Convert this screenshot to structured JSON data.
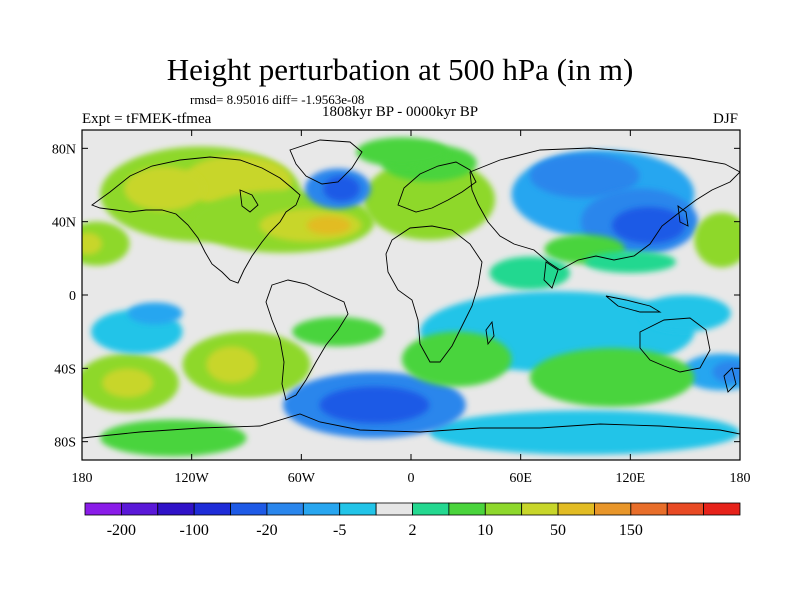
{
  "title": "Height perturbation at 500 hPa (in m)",
  "stats": "rmsd= 8.95016 diff= -1.9563e-08",
  "experiment": "Expt = tFMEK-tfmea",
  "period": "1808kyr BP - 0000kyr BP",
  "season": "DJF",
  "map": {
    "projection": "cylindrical equidistant",
    "lon_range": [
      -180,
      180
    ],
    "lat_range": [
      -90,
      90
    ],
    "x_ticks": [
      {
        "lon": -180,
        "label": "180"
      },
      {
        "lon": -120,
        "label": "120W"
      },
      {
        "lon": -60,
        "label": "60W"
      },
      {
        "lon": 0,
        "label": "0"
      },
      {
        "lon": 60,
        "label": "60E"
      },
      {
        "lon": 120,
        "label": "120E"
      },
      {
        "lon": 180,
        "label": "180"
      }
    ],
    "y_ticks": [
      {
        "lat": 80,
        "label": "80N"
      },
      {
        "lat": 40,
        "label": "40N"
      },
      {
        "lat": 0,
        "label": "0"
      },
      {
        "lat": -40,
        "label": "40S"
      },
      {
        "lat": -80,
        "label": "80S"
      }
    ],
    "background_color": "#e8e8e8",
    "blobs": [
      {
        "lon": -115,
        "lat": 55,
        "rlon": 55,
        "rlat": 26,
        "level": 10
      },
      {
        "lon": -95,
        "lat": 62,
        "rlon": 30,
        "rlat": 14,
        "level": 20
      },
      {
        "lon": -135,
        "lat": 58,
        "rlon": 22,
        "rlat": 12,
        "level": 20
      },
      {
        "lon": -70,
        "lat": 40,
        "rlon": 50,
        "rlat": 17,
        "level": 10
      },
      {
        "lon": -55,
        "lat": 38,
        "rlon": 28,
        "rlat": 9,
        "level": 20
      },
      {
        "lon": -45,
        "lat": 38,
        "rlon": 12,
        "rlat": 5,
        "level": 50
      },
      {
        "lon": -172,
        "lat": 28,
        "rlon": 18,
        "rlat": 12,
        "level": 10
      },
      {
        "lon": -177,
        "lat": 28,
        "rlon": 8,
        "rlat": 6,
        "level": 20
      },
      {
        "lon": 10,
        "lat": 52,
        "rlon": 36,
        "rlat": 22,
        "level": 10
      },
      {
        "lon": 10,
        "lat": 72,
        "rlon": 26,
        "rlat": 10,
        "level": 5
      },
      {
        "lon": -40,
        "lat": 58,
        "rlon": 18,
        "rlat": 11,
        "level": -10
      },
      {
        "lon": -38,
        "lat": 58,
        "rlon": 10,
        "rlat": 7,
        "level": -20
      },
      {
        "lon": -5,
        "lat": 78,
        "rlon": 25,
        "rlat": 8,
        "level": 5
      },
      {
        "lon": 105,
        "lat": 55,
        "rlon": 50,
        "rlat": 24,
        "level": -5
      },
      {
        "lon": 95,
        "lat": 65,
        "rlon": 30,
        "rlat": 12,
        "level": -10
      },
      {
        "lon": 125,
        "lat": 40,
        "rlon": 32,
        "rlat": 18,
        "level": -10
      },
      {
        "lon": 130,
        "lat": 38,
        "rlon": 20,
        "rlat": 10,
        "level": -20
      },
      {
        "lon": 170,
        "lat": 30,
        "rlon": 15,
        "rlat": 15,
        "level": 10
      },
      {
        "lon": 95,
        "lat": 25,
        "rlon": 22,
        "rlat": 8,
        "level": 5
      },
      {
        "lon": 65,
        "lat": 12,
        "rlon": 22,
        "rlat": 9,
        "level": 2
      },
      {
        "lon": 120,
        "lat": 18,
        "rlon": 25,
        "rlat": 6,
        "level": 2
      },
      {
        "lon": 80,
        "lat": -20,
        "rlon": 75,
        "rlat": 22,
        "level": -2
      },
      {
        "lon": 150,
        "lat": -10,
        "rlon": 25,
        "rlat": 10,
        "level": -2
      },
      {
        "lon": 170,
        "lat": -42,
        "rlon": 22,
        "rlat": 10,
        "level": -5
      },
      {
        "lon": 175,
        "lat": -42,
        "rlon": 10,
        "rlat": 6,
        "level": -10
      },
      {
        "lon": 110,
        "lat": -45,
        "rlon": 45,
        "rlat": 16,
        "level": 5
      },
      {
        "lon": 95,
        "lat": -75,
        "rlon": 85,
        "rlat": 12,
        "level": -2
      },
      {
        "lon": -155,
        "lat": -48,
        "rlon": 28,
        "rlat": 16,
        "level": 10
      },
      {
        "lon": -155,
        "lat": -48,
        "rlon": 14,
        "rlat": 8,
        "level": 20
      },
      {
        "lon": -150,
        "lat": -20,
        "rlon": 25,
        "rlat": 12,
        "level": -2
      },
      {
        "lon": -140,
        "lat": -10,
        "rlon": 15,
        "rlat": 6,
        "level": -5
      },
      {
        "lon": -90,
        "lat": -38,
        "rlon": 35,
        "rlat": 18,
        "level": 10
      },
      {
        "lon": -98,
        "lat": -38,
        "rlon": 14,
        "rlat": 10,
        "level": 20
      },
      {
        "lon": -20,
        "lat": -60,
        "rlon": 50,
        "rlat": 18,
        "level": -10
      },
      {
        "lon": -20,
        "lat": -60,
        "rlon": 30,
        "rlat": 10,
        "level": -20
      },
      {
        "lon": -40,
        "lat": -20,
        "rlon": 25,
        "rlat": 8,
        "level": 5
      },
      {
        "lon": 25,
        "lat": -35,
        "rlon": 30,
        "rlat": 15,
        "level": 5
      },
      {
        "lon": -130,
        "lat": -78,
        "rlon": 40,
        "rlat": 10,
        "level": 5
      }
    ]
  },
  "colorbar": {
    "colors": [
      "#8a1ce8",
      "#5a18d8",
      "#3012c8",
      "#1e2cd8",
      "#1e5ae6",
      "#2a86ec",
      "#28a6f0",
      "#22c4e8",
      "#e6e6e6",
      "#24d890",
      "#4ad43c",
      "#8ed82c",
      "#c8d62a",
      "#e2bc24",
      "#e8962a",
      "#e86e2a",
      "#e84a24",
      "#e6221a"
    ],
    "labels": [
      {
        "after_box": 1,
        "text": "-200"
      },
      {
        "after_box": 3,
        "text": "-100"
      },
      {
        "after_box": 5,
        "text": "-20"
      },
      {
        "after_box": 7,
        "text": "-5"
      },
      {
        "after_box": 9,
        "text": "2"
      },
      {
        "after_box": 11,
        "text": "10"
      },
      {
        "after_box": 13,
        "text": "50"
      },
      {
        "after_box": 15,
        "text": "150"
      }
    ]
  },
  "level_colors": {
    "-20": "#1e5ae6",
    "-10": "#2a86ec",
    "-5": "#28a6f0",
    "-2": "#22c4e8",
    "2": "#24d890",
    "5": "#4ad43c",
    "10": "#8ed82c",
    "20": "#c8d62a",
    "50": "#e2bc24"
  }
}
